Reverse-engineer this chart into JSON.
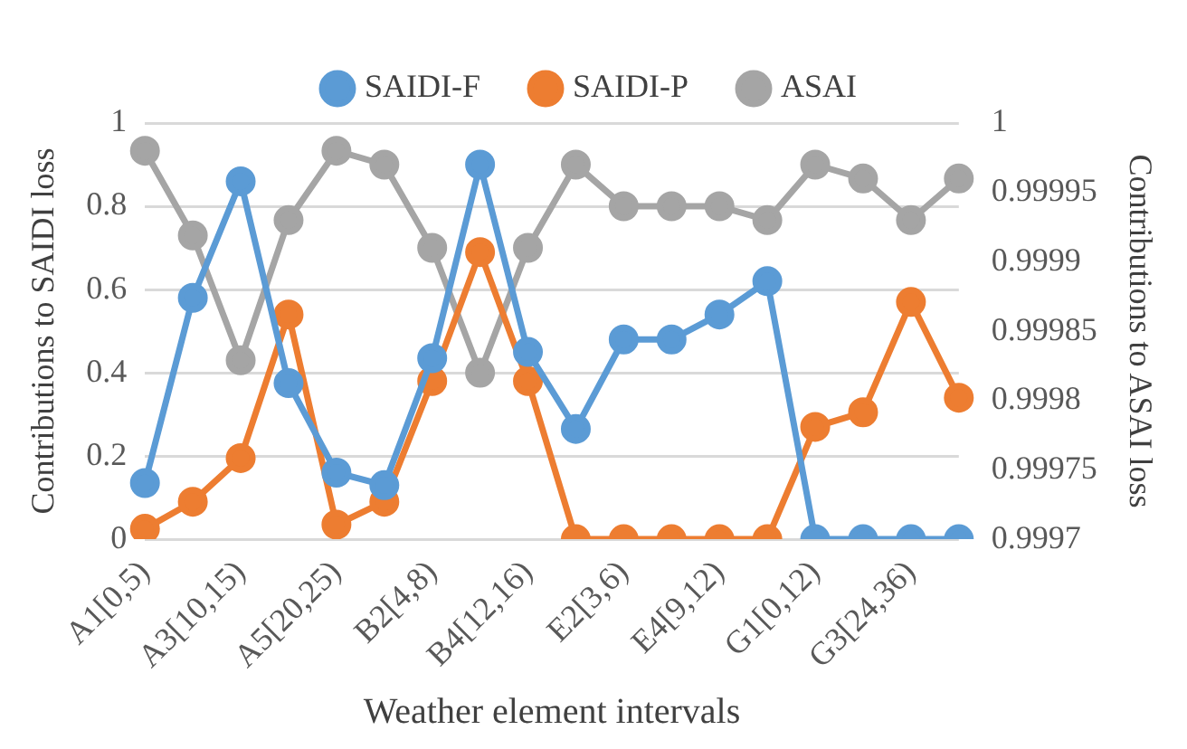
{
  "chart_data": {
    "type": "line",
    "xlabel": "Weather element intervals",
    "ylabel": "Contributions to SAIDI loss",
    "y2label": "Contributions to ASAI loss",
    "categories": [
      "A1[0,5)",
      null,
      "A3[10,15)",
      null,
      "A5[20,25)",
      null,
      "B2[4,8)",
      null,
      "B4[12,16)",
      null,
      "E2[3,6)",
      null,
      "E4[9,12)",
      null,
      "G1[0,12)",
      null,
      "G3[24,36)",
      null
    ],
    "series": [
      {
        "name": "SAIDI-F",
        "color": "#5b9bd5",
        "values": [
          0.135,
          0.58,
          0.86,
          0.375,
          0.16,
          0.13,
          0.435,
          0.9,
          0.45,
          0.265,
          0.48,
          0.48,
          0.54,
          0.62,
          0,
          0,
          0,
          0
        ]
      },
      {
        "name": "SAIDI-P",
        "color": "#ed7d31",
        "values": [
          0.025,
          0.09,
          0.195,
          0.54,
          0.035,
          0.09,
          0.38,
          0.69,
          0.38,
          0,
          0,
          0,
          0,
          0,
          0.27,
          0.305,
          0.57,
          0.34
        ]
      },
      {
        "name": "ASAI",
        "color": "#a5a5a5",
        "axis": "y2",
        "values": [
          0.99998,
          0.999919,
          0.999829,
          0.99993,
          0.99998,
          0.99997,
          0.99991,
          0.99982,
          0.99991,
          0.99997,
          0.99994,
          0.99994,
          0.99994,
          0.99993,
          0.99997,
          0.99996,
          0.99993,
          0.99996
        ]
      }
    ],
    "ylim": [
      0,
      1
    ],
    "yticks": [
      0,
      0.2,
      0.4,
      0.6,
      0.8,
      1
    ],
    "y2lim": [
      0.9997,
      1
    ],
    "y2ticks": [
      0.9997,
      0.99975,
      0.9998,
      0.99985,
      0.9999,
      0.99995,
      1
    ],
    "grid": "y",
    "legend": "top",
    "marker": "circle",
    "line_style": "solid"
  }
}
